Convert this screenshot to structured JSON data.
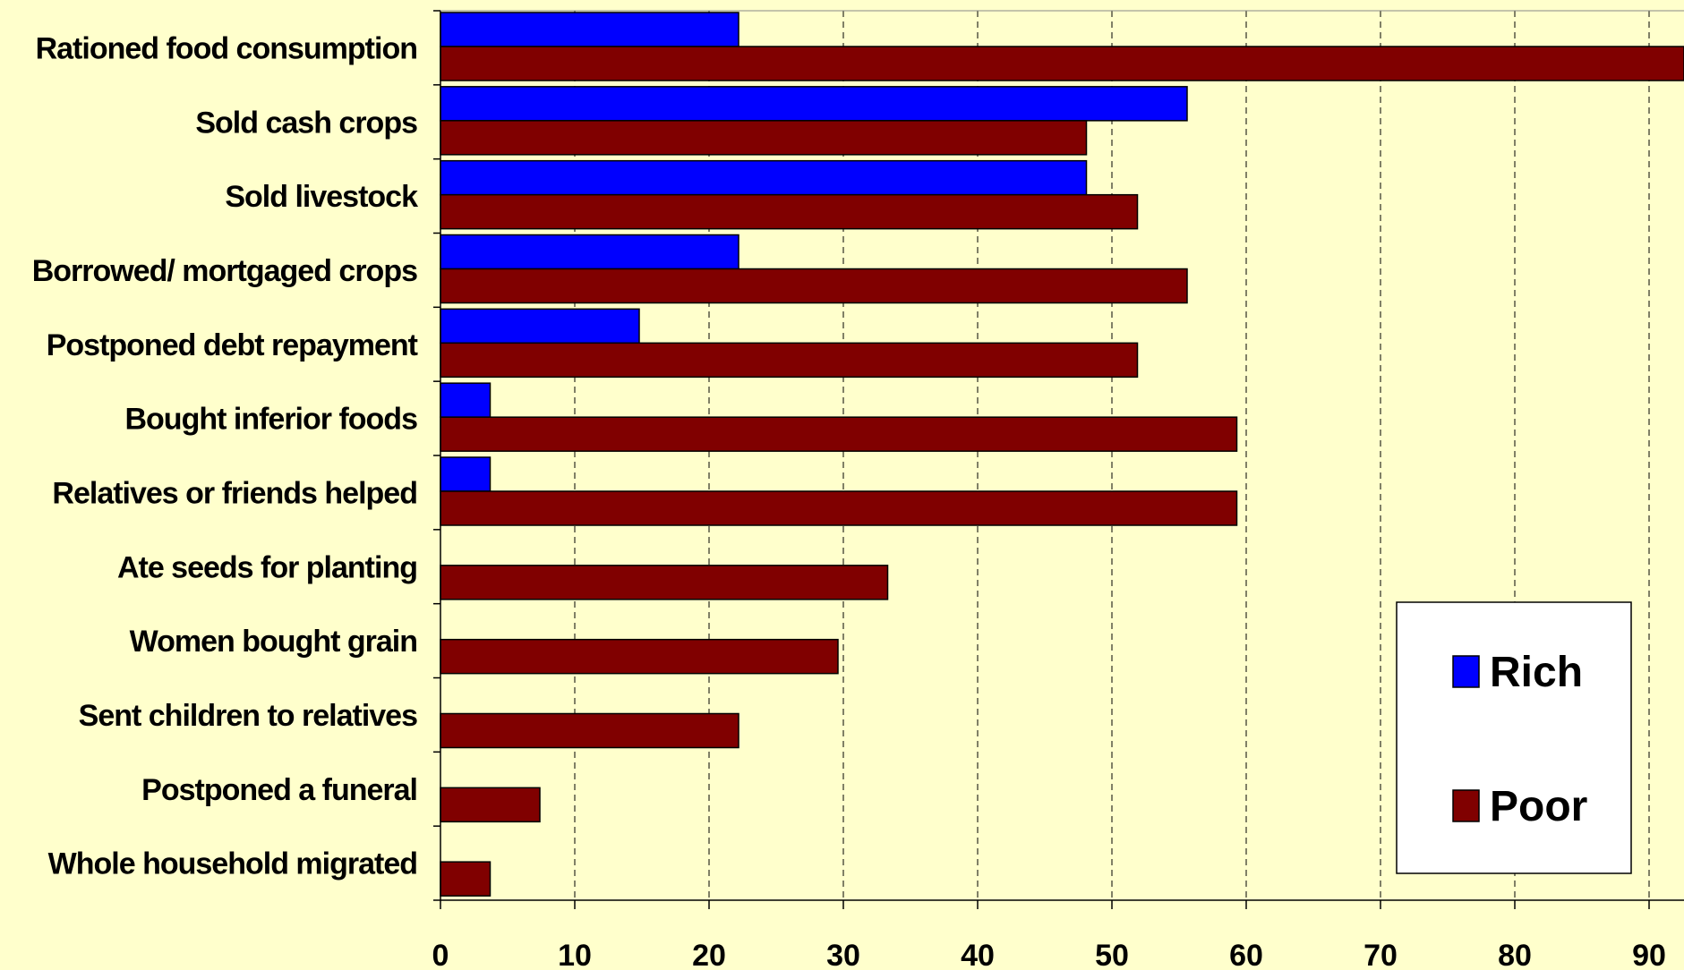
{
  "chart_data": {
    "type": "bar",
    "orientation": "horizontal",
    "categories": [
      "Rationed food consumption",
      "Sold cash crops",
      "Sold livestock",
      "Borrowed/ mortgaged crops",
      "Postponed debt repayment",
      "Bought inferior foods",
      "Relatives or friends helped",
      "Ate seeds for planting",
      "Women bought grain",
      "Sent children to relatives",
      "Postponed a funeral",
      "Whole household migrated"
    ],
    "series": [
      {
        "name": "Rich",
        "color": "#0000ff",
        "values": [
          22.2,
          55.6,
          48.1,
          22.2,
          14.8,
          3.7,
          3.7,
          null,
          null,
          null,
          null,
          null
        ]
      },
      {
        "name": "Poor",
        "color": "#800000",
        "values": [
          92.6,
          48.1,
          51.9,
          55.6,
          51.9,
          59.3,
          59.3,
          33.3,
          29.6,
          22.2,
          7.4,
          3.7
        ]
      }
    ],
    "xlim": [
      0,
      92.6
    ],
    "xticks": [
      0,
      10,
      20,
      30,
      40,
      50,
      60,
      70,
      80,
      90
    ],
    "grid": "vertical dashed",
    "legend_position": "lower-right",
    "background_color": "#ffffcc"
  }
}
